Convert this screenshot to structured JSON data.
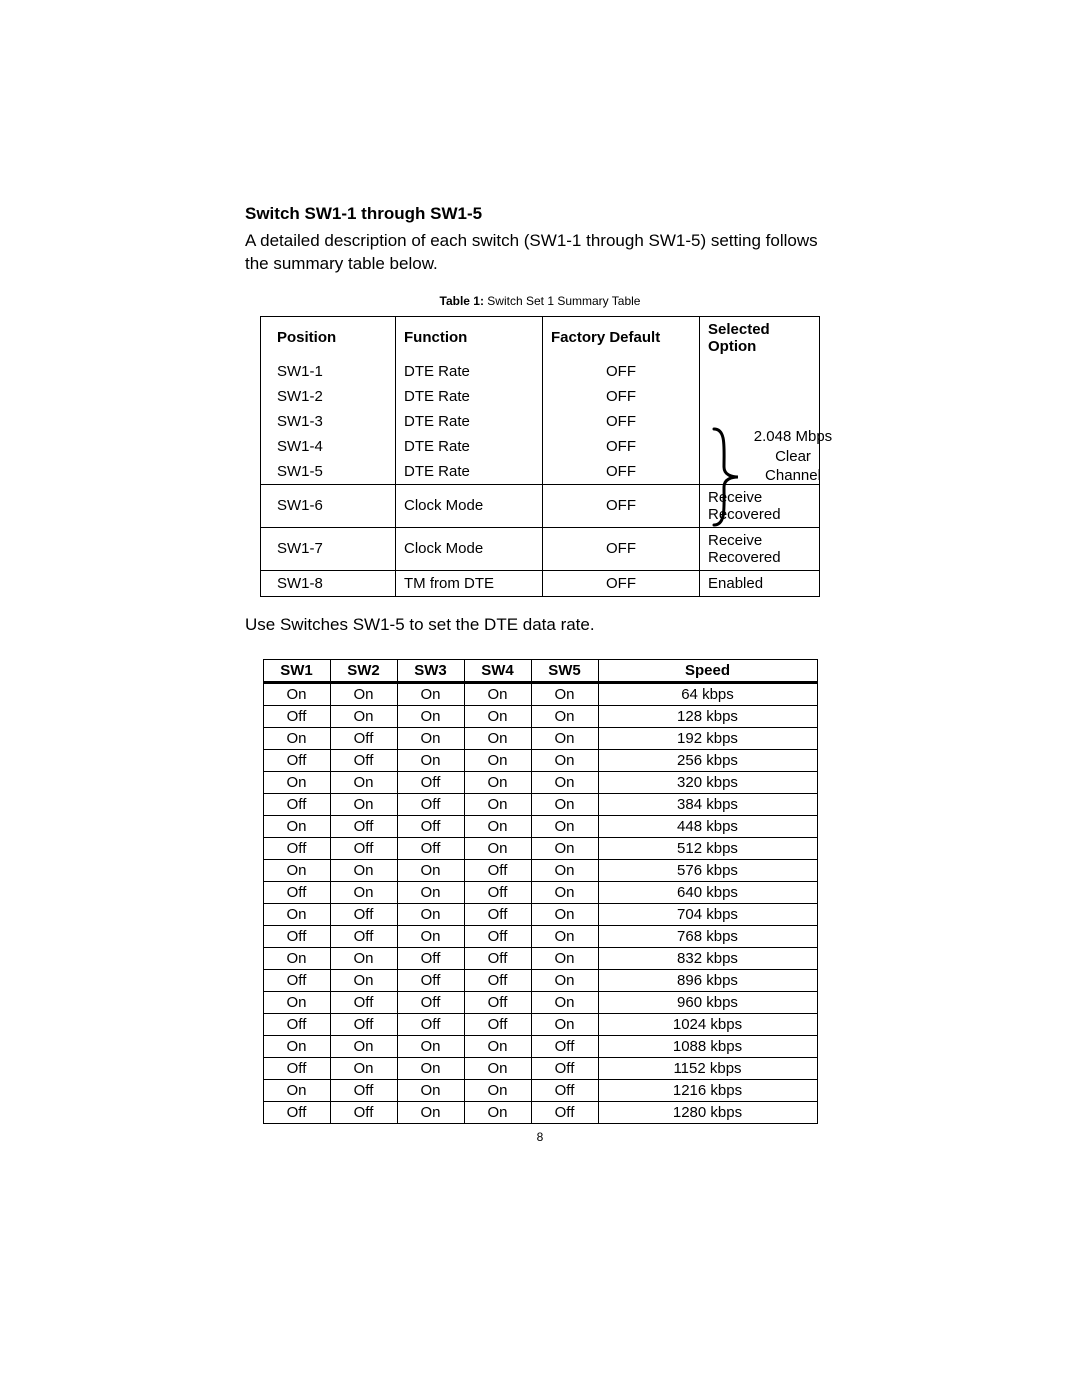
{
  "section_title": "Switch SW1-1 through SW1-5",
  "intro_text": "A detailed description of each switch (SW1-1 through SW1-5) setting follows the summary table below.",
  "table1": {
    "caption_bold": "Table 1:",
    "caption_rest": " Switch Set 1 Summary Table",
    "headers": [
      "Position",
      "Function",
      "Factory Default",
      "Selected Option"
    ],
    "group_rows": [
      {
        "pos": "SW1-1",
        "func": "DTE Rate",
        "def": "OFF"
      },
      {
        "pos": "SW1-2",
        "func": "DTE Rate",
        "def": "OFF"
      },
      {
        "pos": "SW1-3",
        "func": "DTE Rate",
        "def": "OFF"
      },
      {
        "pos": "SW1-4",
        "func": "DTE Rate",
        "def": "OFF"
      },
      {
        "pos": "SW1-5",
        "func": "DTE Rate",
        "def": "OFF"
      }
    ],
    "group_label_line1": "2.048 Mbps",
    "group_label_line2": "Clear",
    "group_label_line3": "Channel",
    "single_rows": [
      {
        "pos": "SW1-6",
        "func": "Clock Mode",
        "def": "OFF",
        "sel": "Receive Recovered"
      },
      {
        "pos": "SW1-7",
        "func": "Clock Mode",
        "def": "OFF",
        "sel": "Receive Recovered"
      },
      {
        "pos": "SW1-8",
        "func": "TM from DTE",
        "def": "OFF",
        "sel": "Enabled"
      }
    ]
  },
  "post_t1_text": "Use Switches SW1-5 to set the DTE data rate.",
  "table2": {
    "headers": [
      "SW1",
      "SW2",
      "SW3",
      "SW4",
      "SW5",
      "Speed"
    ],
    "rows": [
      [
        "On",
        "On",
        "On",
        "On",
        "On",
        "64 kbps"
      ],
      [
        "Off",
        "On",
        "On",
        "On",
        "On",
        "128 kbps"
      ],
      [
        "On",
        "Off",
        "On",
        "On",
        "On",
        "192 kbps"
      ],
      [
        "Off",
        "Off",
        "On",
        "On",
        "On",
        "256 kbps"
      ],
      [
        "On",
        "On",
        "Off",
        "On",
        "On",
        "320 kbps"
      ],
      [
        "Off",
        "On",
        "Off",
        "On",
        "On",
        "384 kbps"
      ],
      [
        "On",
        "Off",
        "Off",
        "On",
        "On",
        "448 kbps"
      ],
      [
        "Off",
        "Off",
        "Off",
        "On",
        "On",
        "512 kbps"
      ],
      [
        "On",
        "On",
        "On",
        "Off",
        "On",
        "576 kbps"
      ],
      [
        "Off",
        "On",
        "On",
        "Off",
        "On",
        "640 kbps"
      ],
      [
        "On",
        "Off",
        "On",
        "Off",
        "On",
        "704 kbps"
      ],
      [
        "Off",
        "Off",
        "On",
        "Off",
        "On",
        "768 kbps"
      ],
      [
        "On",
        "On",
        "Off",
        "Off",
        "On",
        "832 kbps"
      ],
      [
        "Off",
        "On",
        "Off",
        "Off",
        "On",
        "896 kbps"
      ],
      [
        "On",
        "Off",
        "Off",
        "Off",
        "On",
        "960 kbps"
      ],
      [
        "Off",
        "Off",
        "Off",
        "Off",
        "On",
        "1024 kbps"
      ],
      [
        "On",
        "On",
        "On",
        "On",
        "Off",
        "1088 kbps"
      ],
      [
        "Off",
        "On",
        "On",
        "On",
        "Off",
        "1152 kbps"
      ],
      [
        "On",
        "Off",
        "On",
        "On",
        "Off",
        "1216 kbps"
      ],
      [
        "Off",
        "Off",
        "On",
        "On",
        "Off",
        "1280 kbps"
      ]
    ]
  },
  "page_number": "8"
}
